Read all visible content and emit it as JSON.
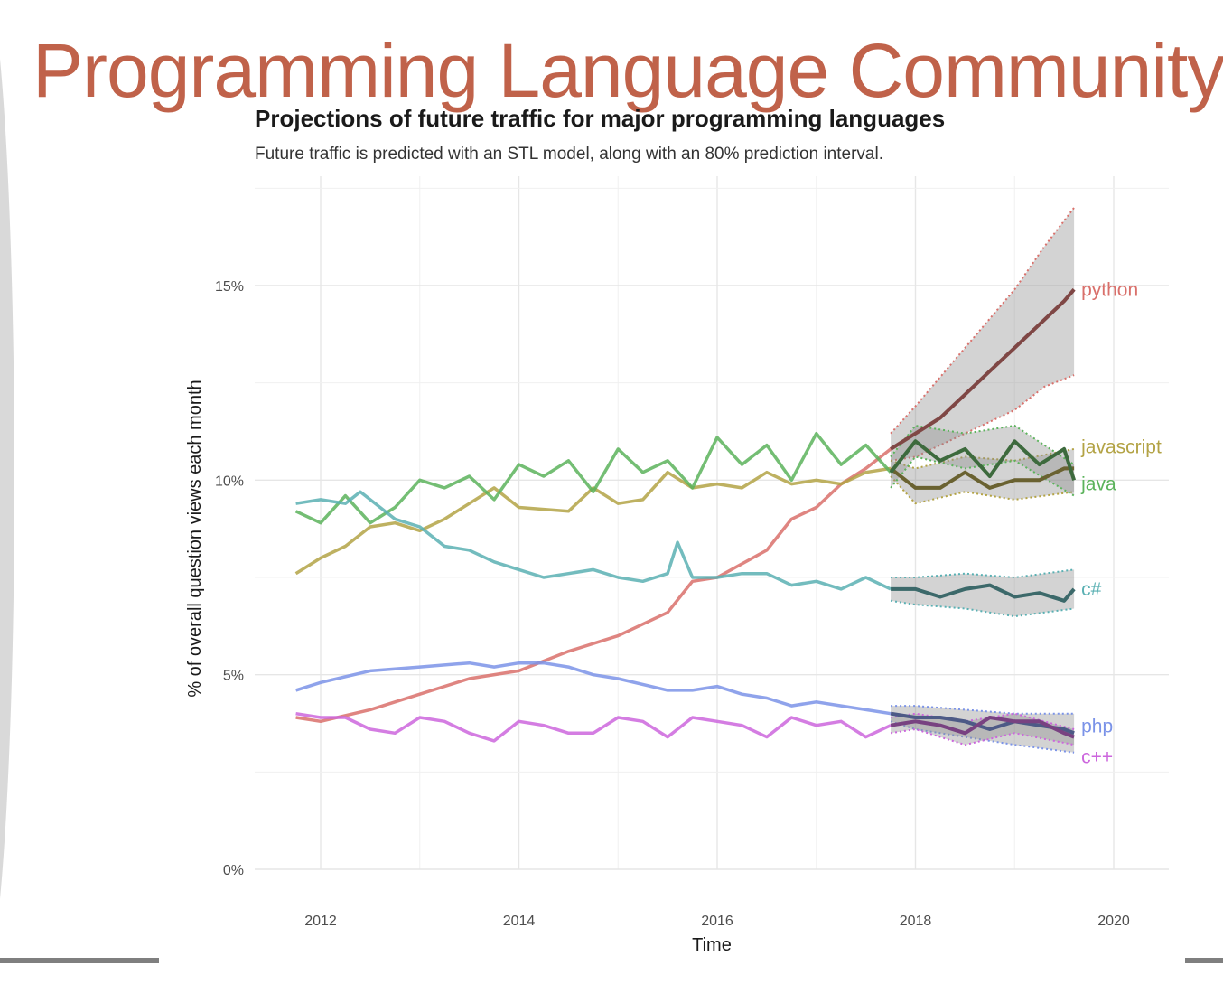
{
  "slide": {
    "title": "Programming Language Community"
  },
  "chart_data": {
    "type": "line",
    "title": "Projections of future traffic for major programming languages",
    "subtitle": "Future traffic is predicted with an STL model, along with an 80% prediction interval.",
    "xlabel": "Time",
    "ylabel": "% of overall question views each month",
    "xlim": [
      2011.5,
      2020.6
    ],
    "ylim": [
      0,
      17.5
    ],
    "x_ticks": [
      2012,
      2014,
      2016,
      2018,
      2020
    ],
    "x_tick_labels": [
      "2012",
      "2014",
      "2016",
      "2018",
      "2020"
    ],
    "y_ticks": [
      0,
      5,
      10,
      15
    ],
    "y_tick_labels": [
      "0%",
      "5%",
      "10%",
      "15%"
    ],
    "grid": true,
    "legend": "direct labels at right end of each line",
    "series": [
      {
        "name": "python",
        "color": "#d9706b",
        "history": [
          [
            2011.75,
            3.9
          ],
          [
            2012.0,
            3.8
          ],
          [
            2012.5,
            4.1
          ],
          [
            2013.0,
            4.5
          ],
          [
            2013.5,
            4.9
          ],
          [
            2014.0,
            5.1
          ],
          [
            2014.5,
            5.6
          ],
          [
            2015.0,
            6.0
          ],
          [
            2015.5,
            6.6
          ],
          [
            2015.75,
            7.4
          ],
          [
            2016.0,
            7.5
          ],
          [
            2016.5,
            8.2
          ],
          [
            2016.75,
            9.0
          ],
          [
            2017.0,
            9.3
          ],
          [
            2017.25,
            9.9
          ],
          [
            2017.5,
            10.3
          ],
          [
            2017.75,
            10.8
          ]
        ],
        "forecast": [
          [
            2017.75,
            10.8
          ],
          [
            2018.0,
            11.2
          ],
          [
            2018.25,
            11.6
          ],
          [
            2018.5,
            12.2
          ],
          [
            2018.75,
            12.8
          ],
          [
            2019.0,
            13.4
          ],
          [
            2019.25,
            14.0
          ],
          [
            2019.5,
            14.6
          ],
          [
            2019.6,
            14.9
          ]
        ],
        "interval_upper": [
          [
            2017.75,
            11.2
          ],
          [
            2018.0,
            11.9
          ],
          [
            2018.5,
            13.4
          ],
          [
            2019.0,
            14.9
          ],
          [
            2019.3,
            16.0
          ],
          [
            2019.6,
            17.0
          ]
        ],
        "interval_lower": [
          [
            2017.75,
            10.5
          ],
          [
            2018.0,
            10.6
          ],
          [
            2018.5,
            11.2
          ],
          [
            2019.0,
            11.8
          ],
          [
            2019.3,
            12.4
          ],
          [
            2019.6,
            12.7
          ]
        ]
      },
      {
        "name": "javascript",
        "color": "#b3a345",
        "history": [
          [
            2011.75,
            7.6
          ],
          [
            2012.0,
            8.0
          ],
          [
            2012.25,
            8.3
          ],
          [
            2012.5,
            8.8
          ],
          [
            2012.75,
            8.9
          ],
          [
            2013.0,
            8.7
          ],
          [
            2013.25,
            9.0
          ],
          [
            2013.5,
            9.4
          ],
          [
            2013.75,
            9.8
          ],
          [
            2014.0,
            9.3
          ],
          [
            2014.5,
            9.2
          ],
          [
            2014.75,
            9.8
          ],
          [
            2015.0,
            9.4
          ],
          [
            2015.25,
            9.5
          ],
          [
            2015.5,
            10.2
          ],
          [
            2015.75,
            9.8
          ],
          [
            2016.0,
            9.9
          ],
          [
            2016.25,
            9.8
          ],
          [
            2016.5,
            10.2
          ],
          [
            2016.75,
            9.9
          ],
          [
            2017.0,
            10.0
          ],
          [
            2017.25,
            9.9
          ],
          [
            2017.5,
            10.2
          ],
          [
            2017.75,
            10.3
          ]
        ],
        "forecast": [
          [
            2017.75,
            10.3
          ],
          [
            2018.0,
            9.8
          ],
          [
            2018.25,
            9.8
          ],
          [
            2018.5,
            10.2
          ],
          [
            2018.75,
            9.8
          ],
          [
            2019.0,
            10.0
          ],
          [
            2019.25,
            10.0
          ],
          [
            2019.5,
            10.3
          ],
          [
            2019.6,
            10.3
          ]
        ],
        "interval_upper": [
          [
            2017.75,
            10.5
          ],
          [
            2018.0,
            10.3
          ],
          [
            2018.5,
            10.6
          ],
          [
            2019.0,
            10.5
          ],
          [
            2019.6,
            10.8
          ]
        ],
        "interval_lower": [
          [
            2017.75,
            10.1
          ],
          [
            2018.0,
            9.4
          ],
          [
            2018.5,
            9.7
          ],
          [
            2019.0,
            9.5
          ],
          [
            2019.6,
            9.7
          ]
        ]
      },
      {
        "name": "java",
        "color": "#5cb35c",
        "history": [
          [
            2011.75,
            9.2
          ],
          [
            2012.0,
            8.9
          ],
          [
            2012.25,
            9.6
          ],
          [
            2012.5,
            8.9
          ],
          [
            2012.75,
            9.3
          ],
          [
            2013.0,
            10.0
          ],
          [
            2013.25,
            9.8
          ],
          [
            2013.5,
            10.1
          ],
          [
            2013.75,
            9.5
          ],
          [
            2014.0,
            10.4
          ],
          [
            2014.25,
            10.1
          ],
          [
            2014.5,
            10.5
          ],
          [
            2014.75,
            9.7
          ],
          [
            2015.0,
            10.8
          ],
          [
            2015.25,
            10.2
          ],
          [
            2015.5,
            10.5
          ],
          [
            2015.75,
            9.8
          ],
          [
            2016.0,
            11.1
          ],
          [
            2016.25,
            10.4
          ],
          [
            2016.5,
            10.9
          ],
          [
            2016.75,
            10.0
          ],
          [
            2017.0,
            11.2
          ],
          [
            2017.25,
            10.4
          ],
          [
            2017.5,
            10.9
          ],
          [
            2017.75,
            10.2
          ]
        ],
        "forecast": [
          [
            2017.75,
            10.2
          ],
          [
            2018.0,
            11.0
          ],
          [
            2018.25,
            10.5
          ],
          [
            2018.5,
            10.8
          ],
          [
            2018.75,
            10.1
          ],
          [
            2019.0,
            11.0
          ],
          [
            2019.25,
            10.4
          ],
          [
            2019.5,
            10.8
          ],
          [
            2019.6,
            10.0
          ]
        ],
        "interval_upper": [
          [
            2017.75,
            10.6
          ],
          [
            2018.0,
            11.4
          ],
          [
            2018.5,
            11.2
          ],
          [
            2019.0,
            11.4
          ],
          [
            2019.6,
            10.4
          ]
        ],
        "interval_lower": [
          [
            2017.75,
            9.8
          ],
          [
            2018.0,
            10.6
          ],
          [
            2018.5,
            10.3
          ],
          [
            2019.0,
            10.5
          ],
          [
            2019.6,
            9.6
          ]
        ]
      },
      {
        "name": "c#",
        "color": "#5ab0b3",
        "history": [
          [
            2011.75,
            9.4
          ],
          [
            2012.0,
            9.5
          ],
          [
            2012.25,
            9.4
          ],
          [
            2012.4,
            9.7
          ],
          [
            2012.75,
            9.0
          ],
          [
            2013.0,
            8.8
          ],
          [
            2013.25,
            8.3
          ],
          [
            2013.5,
            8.2
          ],
          [
            2013.75,
            7.9
          ],
          [
            2014.0,
            7.7
          ],
          [
            2014.25,
            7.5
          ],
          [
            2014.5,
            7.6
          ],
          [
            2014.75,
            7.7
          ],
          [
            2015.0,
            7.5
          ],
          [
            2015.25,
            7.4
          ],
          [
            2015.5,
            7.6
          ],
          [
            2015.6,
            8.4
          ],
          [
            2015.75,
            7.5
          ],
          [
            2016.0,
            7.5
          ],
          [
            2016.25,
            7.6
          ],
          [
            2016.5,
            7.6
          ],
          [
            2016.75,
            7.3
          ],
          [
            2017.0,
            7.4
          ],
          [
            2017.25,
            7.2
          ],
          [
            2017.5,
            7.5
          ],
          [
            2017.75,
            7.2
          ]
        ],
        "forecast": [
          [
            2017.75,
            7.2
          ],
          [
            2018.0,
            7.2
          ],
          [
            2018.25,
            7.0
          ],
          [
            2018.5,
            7.2
          ],
          [
            2018.75,
            7.3
          ],
          [
            2019.0,
            7.0
          ],
          [
            2019.25,
            7.1
          ],
          [
            2019.5,
            6.9
          ],
          [
            2019.6,
            7.2
          ]
        ],
        "interval_upper": [
          [
            2017.75,
            7.5
          ],
          [
            2018.0,
            7.5
          ],
          [
            2018.5,
            7.6
          ],
          [
            2019.0,
            7.5
          ],
          [
            2019.6,
            7.7
          ]
        ],
        "interval_lower": [
          [
            2017.75,
            6.9
          ],
          [
            2018.0,
            6.8
          ],
          [
            2018.5,
            6.7
          ],
          [
            2019.0,
            6.5
          ],
          [
            2019.6,
            6.7
          ]
        ]
      },
      {
        "name": "php",
        "color": "#7b93e8",
        "history": [
          [
            2011.75,
            4.6
          ],
          [
            2012.0,
            4.8
          ],
          [
            2012.5,
            5.1
          ],
          [
            2013.0,
            5.2
          ],
          [
            2013.5,
            5.3
          ],
          [
            2013.75,
            5.2
          ],
          [
            2014.0,
            5.3
          ],
          [
            2014.25,
            5.3
          ],
          [
            2014.5,
            5.2
          ],
          [
            2014.75,
            5.0
          ],
          [
            2015.0,
            4.9
          ],
          [
            2015.5,
            4.6
          ],
          [
            2015.75,
            4.6
          ],
          [
            2016.0,
            4.7
          ],
          [
            2016.25,
            4.5
          ],
          [
            2016.5,
            4.4
          ],
          [
            2016.75,
            4.2
          ],
          [
            2017.0,
            4.3
          ],
          [
            2017.25,
            4.2
          ],
          [
            2017.5,
            4.1
          ],
          [
            2017.75,
            4.0
          ]
        ],
        "forecast": [
          [
            2017.75,
            4.0
          ],
          [
            2018.0,
            3.9
          ],
          [
            2018.25,
            3.9
          ],
          [
            2018.5,
            3.8
          ],
          [
            2018.75,
            3.6
          ],
          [
            2019.0,
            3.8
          ],
          [
            2019.25,
            3.7
          ],
          [
            2019.5,
            3.6
          ],
          [
            2019.6,
            3.5
          ]
        ],
        "interval_upper": [
          [
            2017.75,
            4.2
          ],
          [
            2018.0,
            4.2
          ],
          [
            2018.5,
            4.1
          ],
          [
            2019.0,
            4.0
          ],
          [
            2019.6,
            4.0
          ]
        ],
        "interval_lower": [
          [
            2017.75,
            3.8
          ],
          [
            2018.0,
            3.6
          ],
          [
            2018.5,
            3.4
          ],
          [
            2019.0,
            3.2
          ],
          [
            2019.6,
            3.0
          ]
        ]
      },
      {
        "name": "c++",
        "color": "#cc66dd",
        "history": [
          [
            2011.75,
            4.0
          ],
          [
            2012.0,
            3.9
          ],
          [
            2012.25,
            3.9
          ],
          [
            2012.5,
            3.6
          ],
          [
            2012.75,
            3.5
          ],
          [
            2013.0,
            3.9
          ],
          [
            2013.25,
            3.8
          ],
          [
            2013.5,
            3.5
          ],
          [
            2013.75,
            3.3
          ],
          [
            2014.0,
            3.8
          ],
          [
            2014.25,
            3.7
          ],
          [
            2014.5,
            3.5
          ],
          [
            2014.75,
            3.5
          ],
          [
            2015.0,
            3.9
          ],
          [
            2015.25,
            3.8
          ],
          [
            2015.5,
            3.4
          ],
          [
            2015.75,
            3.9
          ],
          [
            2016.0,
            3.8
          ],
          [
            2016.25,
            3.7
          ],
          [
            2016.5,
            3.4
          ],
          [
            2016.75,
            3.9
          ],
          [
            2017.0,
            3.7
          ],
          [
            2017.25,
            3.8
          ],
          [
            2017.5,
            3.4
          ],
          [
            2017.75,
            3.7
          ]
        ],
        "forecast": [
          [
            2017.75,
            3.7
          ],
          [
            2018.0,
            3.8
          ],
          [
            2018.25,
            3.7
          ],
          [
            2018.5,
            3.5
          ],
          [
            2018.75,
            3.9
          ],
          [
            2019.0,
            3.8
          ],
          [
            2019.25,
            3.8
          ],
          [
            2019.5,
            3.5
          ],
          [
            2019.6,
            3.4
          ]
        ],
        "interval_upper": [
          [
            2017.75,
            3.9
          ],
          [
            2018.0,
            4.0
          ],
          [
            2018.5,
            3.8
          ],
          [
            2019.0,
            4.0
          ],
          [
            2019.6,
            3.6
          ]
        ],
        "interval_lower": [
          [
            2017.75,
            3.5
          ],
          [
            2018.0,
            3.6
          ],
          [
            2018.5,
            3.2
          ],
          [
            2019.0,
            3.5
          ],
          [
            2019.6,
            3.2
          ]
        ]
      }
    ]
  }
}
